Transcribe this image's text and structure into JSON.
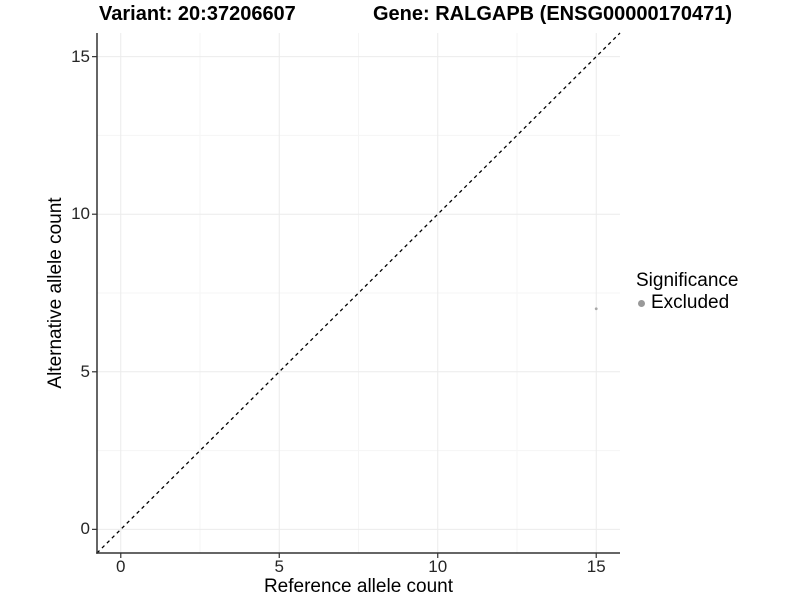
{
  "chart_data": {
    "type": "scatter",
    "title_left": "Variant: 20:37206607",
    "title_right": "Gene: RALGAPB (ENSG00000170471)",
    "xlabel": "Reference allele count",
    "ylabel": "Alternative allele count",
    "xlim": [
      -0.75,
      15.75
    ],
    "ylim": [
      -0.75,
      15.75
    ],
    "x_ticks": [
      0,
      5,
      10,
      15
    ],
    "y_ticks": [
      0,
      5,
      10,
      15
    ],
    "x_minor_ticks": [
      2.5,
      7.5,
      12.5
    ],
    "y_minor_ticks": [
      2.5,
      7.5,
      12.5
    ],
    "grid": "major and minor, light gray, on white panel",
    "panel_border": "left and bottom axis lines only",
    "reference_line": {
      "kind": "identity y=x",
      "x1": -0.75,
      "y1": -0.75,
      "x2": 15.75,
      "y2": 15.75,
      "style": "dashed",
      "color": "#000000"
    },
    "series": [
      {
        "name": "Excluded",
        "color": "#a8a8a8",
        "point_radius_px": 1.4,
        "points": [
          {
            "x": 15,
            "y": 7
          }
        ]
      }
    ],
    "legend": {
      "title": "Significance",
      "position": "right",
      "entries": [
        {
          "label": "Excluded",
          "color": "#999999"
        }
      ]
    },
    "colors": {
      "grid_major": "#ebebeb",
      "grid_minor": "#f5f5f5",
      "axis_line": "#333333",
      "tick_mark": "#333333",
      "tick_text": "#262626",
      "title_text": "#000000",
      "background": "#ffffff"
    }
  }
}
